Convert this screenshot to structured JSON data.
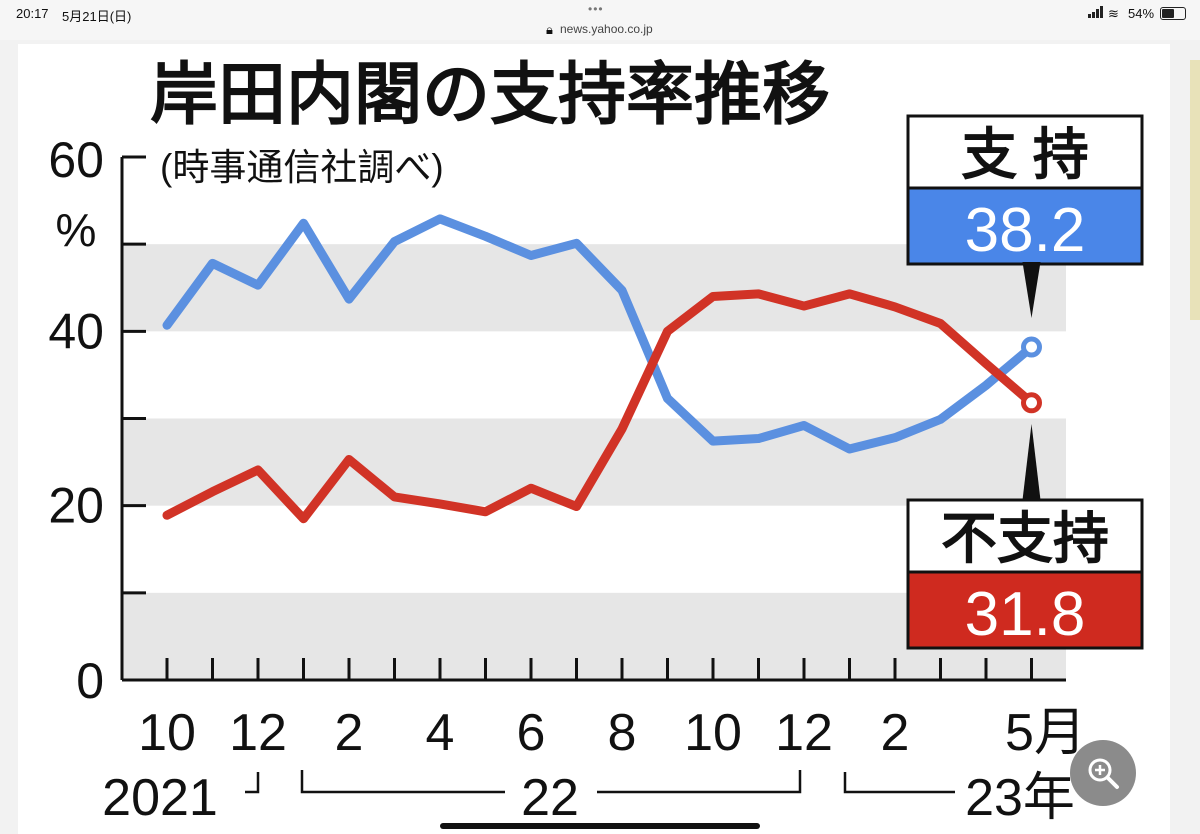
{
  "statusbar": {
    "time": "20:17",
    "date": "5月21日(日)",
    "url": "news.yahoo.co.jp",
    "battery": "54%",
    "battery_level": 0.54
  },
  "chart_data": {
    "type": "line",
    "title": "岸田内閣の支持率推移",
    "subtitle": "(時事通信社調べ)",
    "ylabel": "%",
    "ylim": [
      0,
      60
    ],
    "yticks": [
      "60",
      "40",
      "20",
      "0"
    ],
    "xticklabels": [
      {
        "label": "10",
        "index": 0
      },
      {
        "label": "12",
        "index": 2
      },
      {
        "label": "2",
        "index": 4
      },
      {
        "label": "4",
        "index": 6
      },
      {
        "label": "6",
        "index": 8
      },
      {
        "label": "8",
        "index": 10
      },
      {
        "label": "10",
        "index": 12
      },
      {
        "label": "12",
        "index": 14
      },
      {
        "label": "2",
        "index": 16
      },
      {
        "label": "5月",
        "index": 19
      }
    ],
    "year_labels": [
      "2021",
      "22",
      "23年"
    ],
    "x": [
      "2021-10",
      "2021-11",
      "2021-12",
      "2022-01",
      "2022-02",
      "2022-03",
      "2022-04",
      "2022-05",
      "2022-06",
      "2022-07",
      "2022-08",
      "2022-09",
      "2022-10",
      "2022-11",
      "2022-12",
      "2023-01",
      "2023-02",
      "2023-03",
      "2023-04",
      "2023-05"
    ],
    "series": [
      {
        "name": "支 持",
        "color": "#5b90e0",
        "values": [
          40.7,
          47.8,
          45.3,
          52.4,
          43.7,
          50.3,
          52.9,
          50.9,
          48.7,
          50.1,
          44.7,
          32.3,
          27.4,
          27.7,
          29.2,
          26.5,
          27.8,
          29.9,
          33.8,
          38.2
        ]
      },
      {
        "name": "不支持",
        "color": "#d13326",
        "values": [
          18.9,
          21.6,
          24.1,
          18.5,
          25.3,
          21.0,
          20.2,
          19.3,
          22.0,
          19.9,
          28.8,
          40.0,
          44.0,
          44.3,
          42.9,
          44.3,
          42.8,
          40.9,
          36.3,
          31.8
        ]
      }
    ],
    "callouts": [
      {
        "label": "支 持",
        "value": "38.2",
        "color": "#4a86e8"
      },
      {
        "label": "不支持",
        "value": "31.8",
        "color": "#cf2a1f"
      }
    ],
    "grid_bands": true,
    "legend": "right"
  }
}
